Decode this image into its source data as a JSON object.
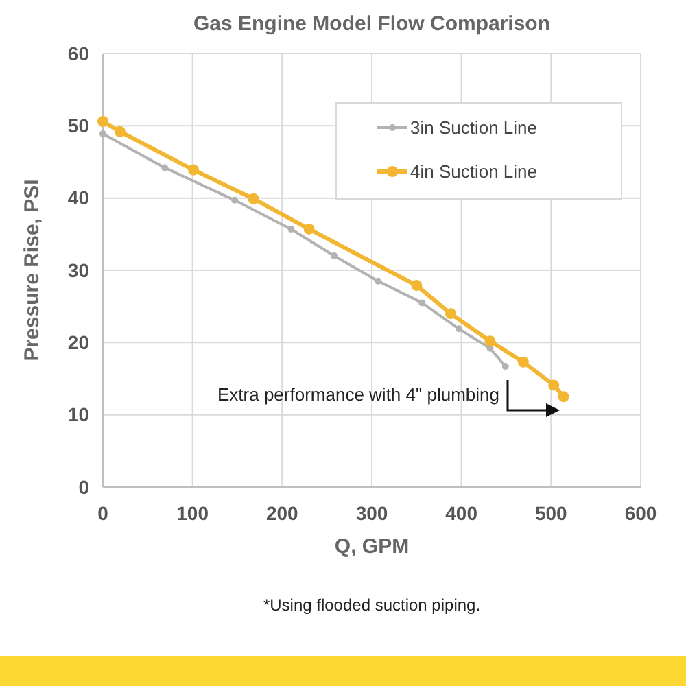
{
  "chart_data": {
    "type": "line",
    "title": "Gas Engine Model Flow Comparison",
    "xlabel": "Q, GPM",
    "ylabel": "Pressure Rise, PSI",
    "xlim": [
      0,
      600
    ],
    "xticks": [
      0,
      100,
      200,
      300,
      400,
      500,
      600
    ],
    "ylim": [
      0,
      60
    ],
    "yticks": [
      0,
      10,
      20,
      30,
      40,
      50,
      60
    ],
    "grid": true,
    "legend": "top right",
    "marker": "circle",
    "series": [
      {
        "name": "3in Suction Line",
        "color": "#b3b3b3",
        "x": [
          0,
          69,
          147,
          210,
          258,
          307,
          356,
          397,
          432,
          449
        ],
        "values": [
          48.9,
          44.2,
          39.7,
          35.7,
          32.0,
          28.5,
          25.5,
          21.9,
          19.2,
          16.7
        ]
      },
      {
        "name": "4in Suction Line",
        "color": "#f2b632",
        "x": [
          0,
          19,
          101,
          168,
          230,
          350,
          388,
          432,
          469,
          503,
          514
        ],
        "values": [
          50.6,
          49.2,
          43.9,
          39.9,
          35.7,
          27.9,
          24.0,
          20.2,
          17.3,
          14.1,
          12.5
        ]
      }
    ],
    "annotations": [
      "Extra performance with 4\" plumbing",
      "*Using flooded suction piping."
    ]
  }
}
